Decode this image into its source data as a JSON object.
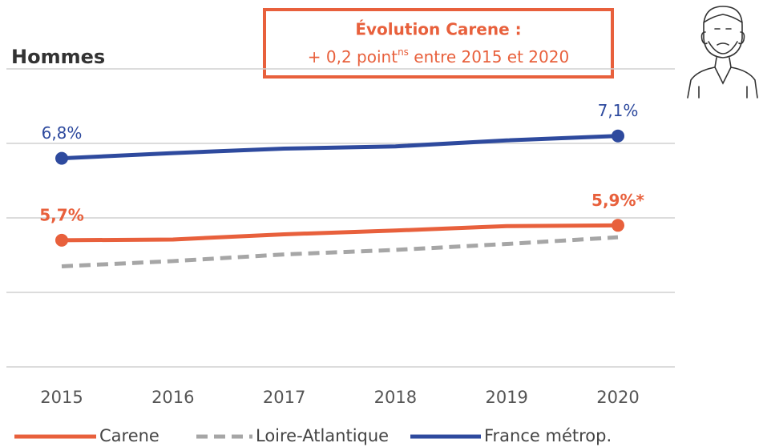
{
  "chart_data": {
    "type": "line",
    "title": "Hommes",
    "annotation": {
      "title": "Évolution Carene :",
      "text_before": "+ 0,2 point",
      "superscript": "ns",
      "text_after": " entre 2015 et 2020"
    },
    "categories": [
      "2015",
      "2016",
      "2017",
      "2018",
      "2019",
      "2020"
    ],
    "series": [
      {
        "name": "Carene",
        "color": "#e8603c",
        "marker": true,
        "bold_labels": true,
        "values": [
          5.7,
          5.71,
          5.78,
          5.83,
          5.89,
          5.9
        ],
        "value_labels": [
          "5,7%",
          null,
          null,
          null,
          null,
          "5,9%*"
        ]
      },
      {
        "name": "Loire-Atlantique",
        "color": "#a6a6a6",
        "dashed": true,
        "values": [
          5.35,
          5.42,
          5.51,
          5.57,
          5.65,
          5.74
        ]
      },
      {
        "name": "France métrop.",
        "color": "#2e4a9e",
        "marker": true,
        "values": [
          6.8,
          6.87,
          6.93,
          6.96,
          7.04,
          7.1
        ],
        "value_labels": [
          "6,8%",
          null,
          null,
          null,
          null,
          "7,1%"
        ]
      }
    ],
    "ylim": [
      4,
      8
    ],
    "yticks": [
      4,
      5,
      6,
      7,
      8
    ],
    "grid": true
  }
}
